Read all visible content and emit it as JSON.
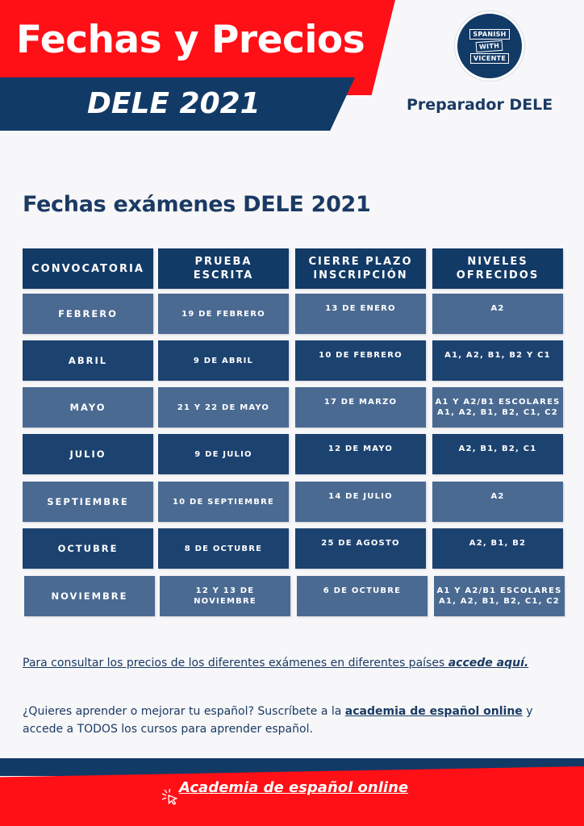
{
  "header": {
    "title": "Fechas y Precios",
    "subtitle": "DELE 2021",
    "logo_lines": [
      "SPANISH",
      "WITH",
      "VICENTE"
    ],
    "tagline": "Preparador DELE"
  },
  "section_title": "Fechas exámenes DELE  2021",
  "table": {
    "headers": [
      "CONVOCATORIA",
      "PRUEBA\nESCRITA",
      "CIERRE PLAZO\nINSCRIPCIÓN",
      "NIVELES\nOFRECIDOS"
    ],
    "rows": [
      [
        "FEBRERO",
        "19 DE FEBRERO",
        "13 DE ENERO",
        "A2"
      ],
      [
        "ABRIL",
        "9 DE ABRIL",
        "10 DE FEBRERO",
        "A1, A2, B1, B2 Y C1"
      ],
      [
        "MAYO",
        "21 Y 22 DE MAYO",
        "17 DE MARZO",
        "A1 Y A2/B1 ESCOLARES\nA1, A2, B1, B2, C1, C2"
      ],
      [
        "JULIO",
        "9 DE JULIO",
        "12 DE MAYO",
        "A2, B1, B2, C1"
      ],
      [
        "SEPTIEMBRE",
        "10 DE SEPTIEMBRE",
        "14 DE JULIO",
        "A2"
      ],
      [
        "OCTUBRE",
        "8 DE OCTUBRE",
        "25 DE AGOSTO",
        "A2, B1, B2"
      ],
      [
        "NOVIEMBRE",
        "12 Y 13 DE\nNOVIEMBRE",
        "6 DE OCTUBRE",
        "A1 Y A2/B1 ESCOLARES\nA1, A2, B1, B2, C1, C2"
      ]
    ]
  },
  "prices_note": {
    "text": "Para consultar los precios de los diferentes exámenes en diferentes países ",
    "link": "accede aquí."
  },
  "academy_note": {
    "before": "¿Quieres aprender o mejorar tu español? Suscríbete a la ",
    "link": "academia de español online",
    "after": " y accede a TODOS los cursos para aprender español."
  },
  "footer": {
    "link": "Academia de español online",
    "icon": "cursor-click-icon"
  },
  "colors": {
    "red": "#ff0f16",
    "navy": "#123a66",
    "cell_light": "#4a6a92",
    "cell_dark": "#1c4270"
  }
}
